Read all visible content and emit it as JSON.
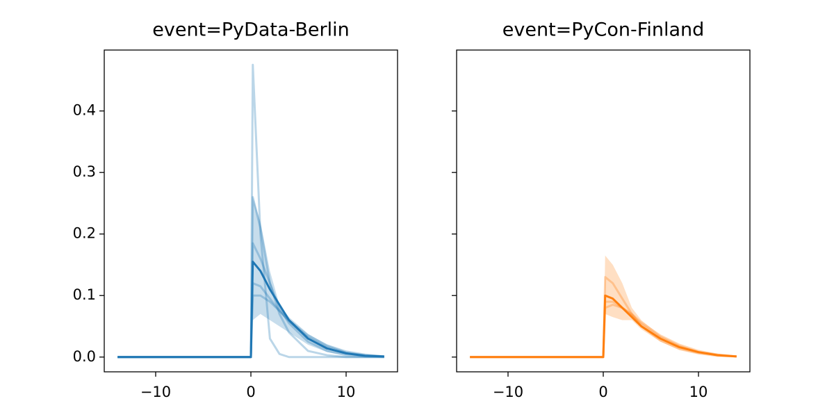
{
  "chart_data": [
    {
      "type": "line",
      "title": "event=PyData-Berlin",
      "x": [
        -14,
        0,
        0.2,
        1,
        2,
        3,
        4,
        6,
        8,
        10,
        12,
        14
      ],
      "xlim": [
        -15.4,
        15.4
      ],
      "ylim": [
        -0.024,
        0.499
      ],
      "xticks": [
        {
          "value": -10,
          "label": "−10"
        },
        0,
        10
      ],
      "yticks": [
        {
          "value": 0,
          "label": "0.0"
        },
        0.1,
        0.2,
        0.3,
        0.4
      ],
      "show_ytick_labels": true,
      "band": {
        "color": "#1f77b4",
        "opacity": 0.25,
        "upper": [
          0,
          0,
          0.26,
          0.22,
          0.14,
          0.085,
          0.065,
          0.038,
          0.02,
          0.009,
          0.004,
          0.001
        ],
        "lower": [
          0,
          0,
          0.06,
          0.07,
          0.06,
          0.05,
          0.04,
          0.02,
          0.008,
          0.003,
          0.001,
          0
        ]
      },
      "series": [
        {
          "color": "#1f77b4",
          "opacity": 0.3,
          "width": 3,
          "values": [
            0,
            0,
            0.475,
            0.2,
            0.03,
            0.005,
            0,
            0,
            0,
            0,
            0,
            0
          ]
        },
        {
          "color": "#1f77b4",
          "opacity": 0.3,
          "width": 3,
          "values": [
            0,
            0,
            0.26,
            0.21,
            0.12,
            0.07,
            0.04,
            0.01,
            0.003,
            0,
            0,
            0
          ]
        },
        {
          "color": "#1f77b4",
          "opacity": 0.3,
          "width": 3,
          "values": [
            0,
            0,
            0.185,
            0.16,
            0.12,
            0.08,
            0.055,
            0.025,
            0.01,
            0.003,
            0.001,
            0
          ]
        },
        {
          "color": "#1f77b4",
          "opacity": 0.3,
          "width": 3,
          "values": [
            0,
            0,
            0.12,
            0.115,
            0.095,
            0.075,
            0.058,
            0.032,
            0.016,
            0.007,
            0.003,
            0.001
          ]
        },
        {
          "color": "#1f77b4",
          "opacity": 0.3,
          "width": 3,
          "values": [
            0,
            0,
            0.1,
            0.1,
            0.09,
            0.075,
            0.06,
            0.035,
            0.019,
            0.009,
            0.004,
            0.001
          ]
        },
        {
          "color": "#1f77b4",
          "opacity": 1,
          "width": 3,
          "values": [
            0,
            0,
            0.155,
            0.14,
            0.11,
            0.085,
            0.06,
            0.03,
            0.014,
            0.006,
            0.002,
            0.001
          ]
        }
      ]
    },
    {
      "type": "line",
      "title": "event=PyCon-Finland",
      "x": [
        -14,
        0,
        0.2,
        1,
        2,
        3,
        4,
        6,
        8,
        10,
        12,
        14
      ],
      "xlim": [
        -15.4,
        15.4
      ],
      "ylim": [
        -0.024,
        0.499
      ],
      "xticks": [
        {
          "value": -10,
          "label": "−10"
        },
        0,
        10
      ],
      "yticks": [
        0,
        0.1,
        0.2,
        0.3,
        0.4
      ],
      "show_ytick_labels": false,
      "band": {
        "color": "#ff7f0e",
        "opacity": 0.25,
        "upper": [
          0,
          0,
          0.165,
          0.15,
          0.12,
          0.08,
          0.06,
          0.035,
          0.02,
          0.01,
          0.004,
          0.001
        ],
        "lower": [
          0,
          0,
          0.07,
          0.065,
          0.06,
          0.06,
          0.045,
          0.025,
          0.012,
          0.005,
          0.002,
          0.001
        ]
      },
      "series": [
        {
          "color": "#ff7f0e",
          "opacity": 0.3,
          "width": 3,
          "values": [
            0,
            0,
            0.09,
            0.09,
            0.08,
            0.068,
            0.053,
            0.032,
            0.017,
            0.008,
            0.004,
            0.001
          ]
        },
        {
          "color": "#ff7f0e",
          "opacity": 0.3,
          "width": 3,
          "values": [
            0,
            0,
            0.13,
            0.12,
            0.095,
            0.07,
            0.05,
            0.027,
            0.013,
            0.006,
            0.002,
            0.001
          ]
        },
        {
          "color": "#ff7f0e",
          "opacity": 0.3,
          "width": 3,
          "values": [
            0,
            0,
            0.08,
            0.085,
            0.08,
            0.07,
            0.056,
            0.035,
            0.02,
            0.01,
            0.004,
            0.001
          ]
        },
        {
          "color": "#ff7f0e",
          "opacity": 1,
          "width": 3,
          "values": [
            0,
            0,
            0.1,
            0.095,
            0.08,
            0.065,
            0.05,
            0.03,
            0.016,
            0.008,
            0.003,
            0.001
          ]
        }
      ]
    }
  ]
}
